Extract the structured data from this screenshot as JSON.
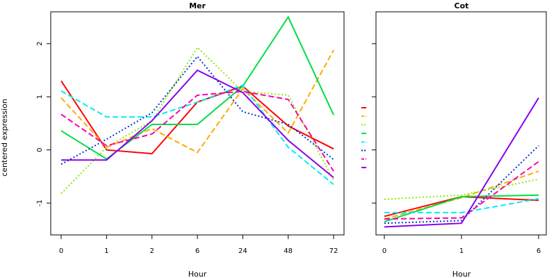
{
  "ylabel": "centered expression",
  "chart_data": [
    {
      "type": "line",
      "title": "Mer",
      "xlabel": "Hour",
      "categories": [
        "0",
        "1",
        "2",
        "6",
        "24",
        "48",
        "72"
      ],
      "ylim": [
        -1.6,
        2.6
      ],
      "yticks": [
        -1,
        0,
        1,
        2
      ],
      "series": [
        {
          "color": "#ff0000",
          "dash": "solid",
          "values": [
            1.3,
            0.0,
            -0.07,
            0.9,
            1.2,
            0.45,
            0.02
          ]
        },
        {
          "color": "#ffaa00",
          "dash": "long",
          "values": [
            0.98,
            0.05,
            0.4,
            -0.05,
            1.15,
            0.32,
            1.88
          ]
        },
        {
          "color": "#88ee00",
          "dash": "dot",
          "values": [
            -0.82,
            0.05,
            0.55,
            1.93,
            1.1,
            1.03,
            -0.57
          ]
        },
        {
          "color": "#00dd44",
          "dash": "solid",
          "values": [
            0.36,
            -0.17,
            0.48,
            0.48,
            1.2,
            2.5,
            0.66
          ]
        },
        {
          "color": "#00eeee",
          "dash": "long",
          "values": [
            1.11,
            0.62,
            0.62,
            0.9,
            1.22,
            0.05,
            -0.65
          ]
        },
        {
          "color": "#0033dd",
          "dash": "dot",
          "values": [
            -0.27,
            0.2,
            0.7,
            1.76,
            0.72,
            0.48,
            -0.18
          ]
        },
        {
          "color": "#ff00aa",
          "dash": "long",
          "values": [
            0.67,
            0.08,
            0.3,
            1.03,
            1.1,
            0.95,
            -0.4
          ]
        },
        {
          "color": "#8800ee",
          "dash": "solid",
          "values": [
            -0.19,
            -0.19,
            0.55,
            1.5,
            1.08,
            0.18,
            -0.52
          ]
        }
      ]
    },
    {
      "type": "line",
      "title": "Cot",
      "xlabel": "Hour",
      "categories": [
        "0",
        "1",
        "6"
      ],
      "ylim": [
        -1.6,
        2.6
      ],
      "yticks": [
        -1,
        0,
        1,
        2
      ],
      "series": [
        {
          "color": "#ff0000",
          "dash": "solid",
          "values": [
            -1.25,
            -0.88,
            -0.95
          ]
        },
        {
          "color": "#ffaa00",
          "dash": "long",
          "values": [
            -1.3,
            -0.9,
            -0.4
          ]
        },
        {
          "color": "#88ee00",
          "dash": "dot",
          "values": [
            -0.93,
            -0.85,
            -0.55
          ]
        },
        {
          "color": "#00dd44",
          "dash": "solid",
          "values": [
            -1.35,
            -0.88,
            -0.85
          ]
        },
        {
          "color": "#00eeee",
          "dash": "long",
          "values": [
            -1.18,
            -1.18,
            -0.92
          ]
        },
        {
          "color": "#0033dd",
          "dash": "dot",
          "values": [
            -1.38,
            -1.33,
            0.08
          ]
        },
        {
          "color": "#ff00aa",
          "dash": "long",
          "values": [
            -1.3,
            -1.28,
            -0.22
          ]
        },
        {
          "color": "#8800ee",
          "dash": "solid",
          "values": [
            -1.45,
            -1.38,
            0.98
          ]
        }
      ]
    }
  ]
}
